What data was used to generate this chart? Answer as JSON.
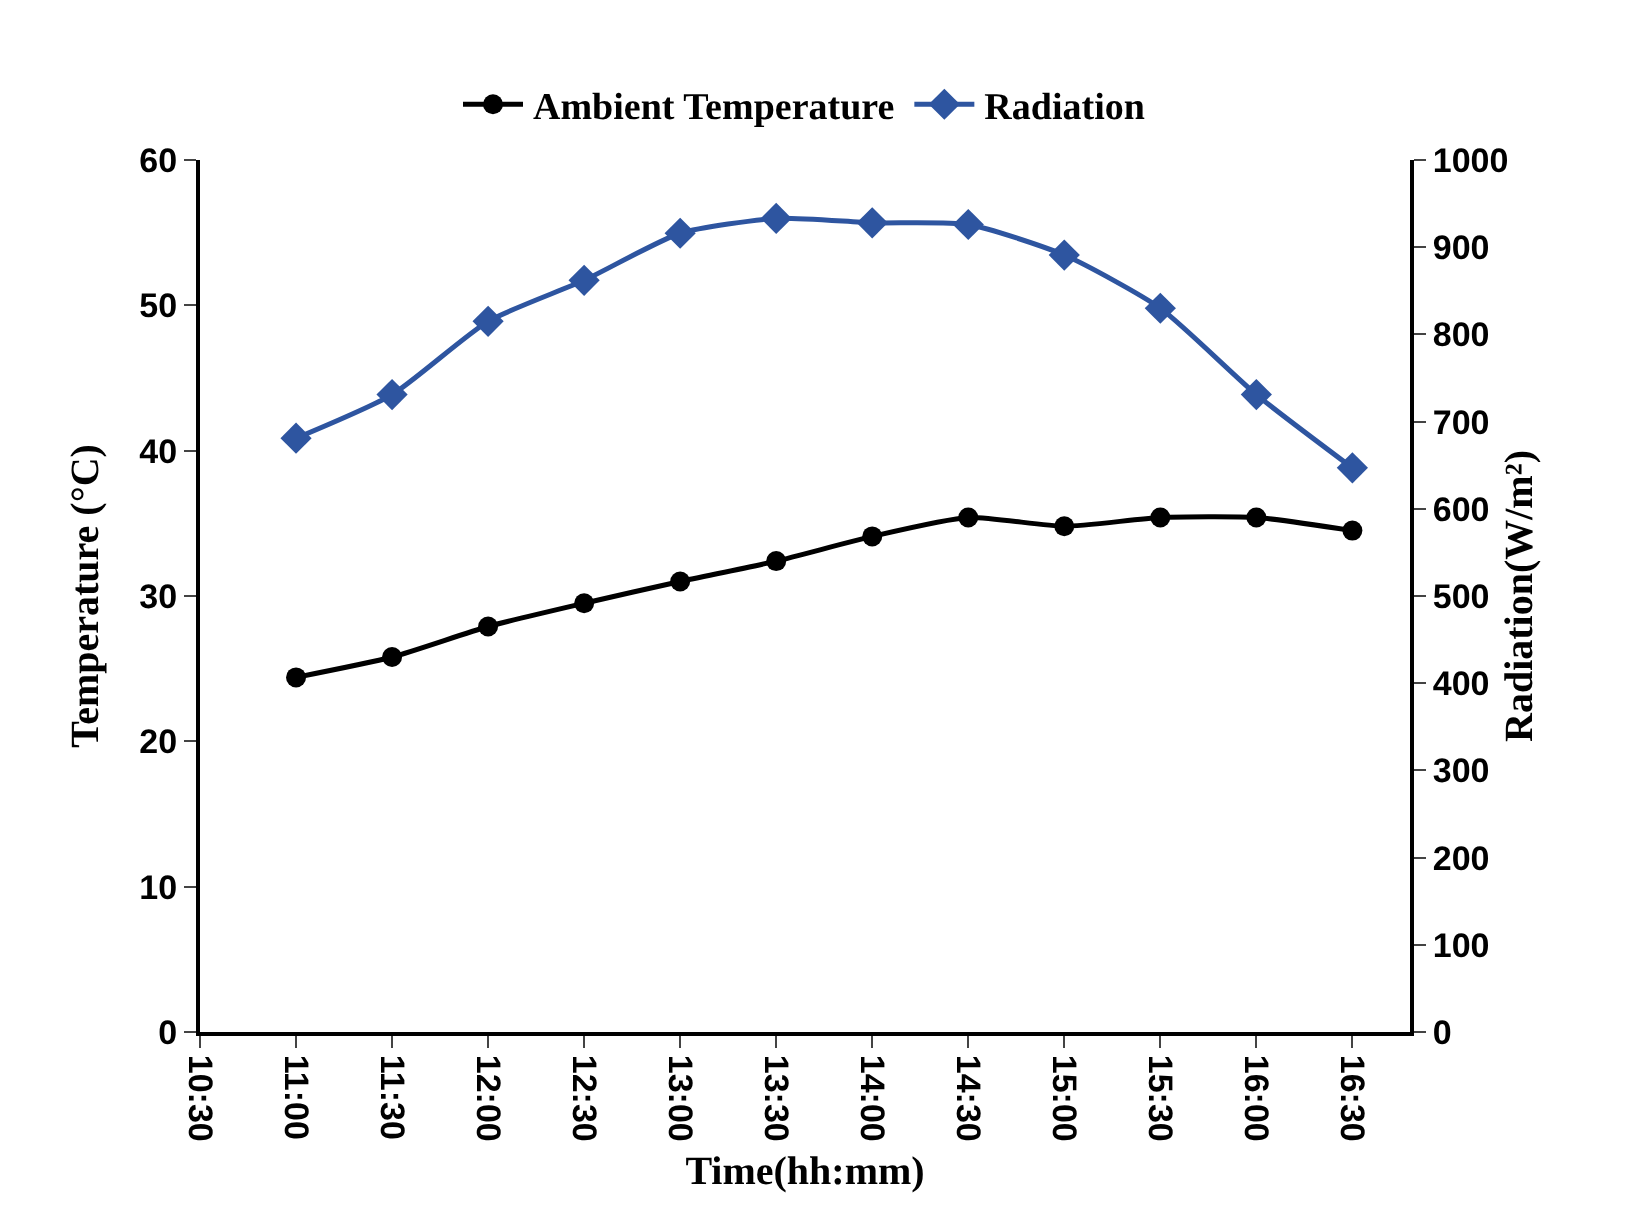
{
  "chart_data": {
    "type": "line",
    "xlabel": "Time(hh:mm)",
    "ylabel": "Temperature (°C)",
    "y2label": "Radiation(W/m²)",
    "x": [
      11,
      11.5,
      12,
      12.5,
      13,
      13.5,
      14,
      14.5,
      15,
      15.5,
      16,
      16.5
    ],
    "series": [
      {
        "name": "Ambient Temperature",
        "color": "#000000",
        "marker": "circle",
        "values": [
          24.4,
          25.8,
          27.9,
          29.5,
          31.0,
          32.4,
          34.1,
          35.4,
          34.8,
          35.4,
          35.4,
          34.5
        ]
      },
      {
        "name": "Radiation",
        "color": "#2e55a0",
        "marker": "diamond",
        "axis": "y2",
        "values": [
          681,
          731,
          815,
          862,
          916,
          933,
          928,
          926,
          891,
          830,
          731,
          647
        ]
      }
    ],
    "xlim": [
      10.5,
      16.8
    ],
    "xticks": [
      {
        "value": 10.5,
        "label": "10:30"
      },
      {
        "value": 11,
        "label": "11:00"
      },
      {
        "value": 11.5,
        "label": "11:30"
      },
      {
        "value": 12,
        "label": "12:00"
      },
      {
        "value": 12.5,
        "label": "12:30"
      },
      {
        "value": 13,
        "label": "13:00"
      },
      {
        "value": 13.5,
        "label": "13:30"
      },
      {
        "value": 14,
        "label": "14:00"
      },
      {
        "value": 14.5,
        "label": "14:30"
      },
      {
        "value": 15,
        "label": "15:00"
      },
      {
        "value": 15.5,
        "label": "15:30"
      },
      {
        "value": 16,
        "label": "16:00"
      },
      {
        "value": 16.5,
        "label": "16:30"
      }
    ],
    "ylim": [
      0,
      60
    ],
    "yticks": [
      0,
      10,
      20,
      30,
      40,
      50,
      60
    ],
    "y2lim": [
      0,
      1000
    ],
    "y2ticks": [
      0,
      100,
      200,
      300,
      400,
      500,
      600,
      700,
      800,
      900,
      1000
    ],
    "grid": false,
    "legend": "top",
    "line_style": "solid"
  }
}
